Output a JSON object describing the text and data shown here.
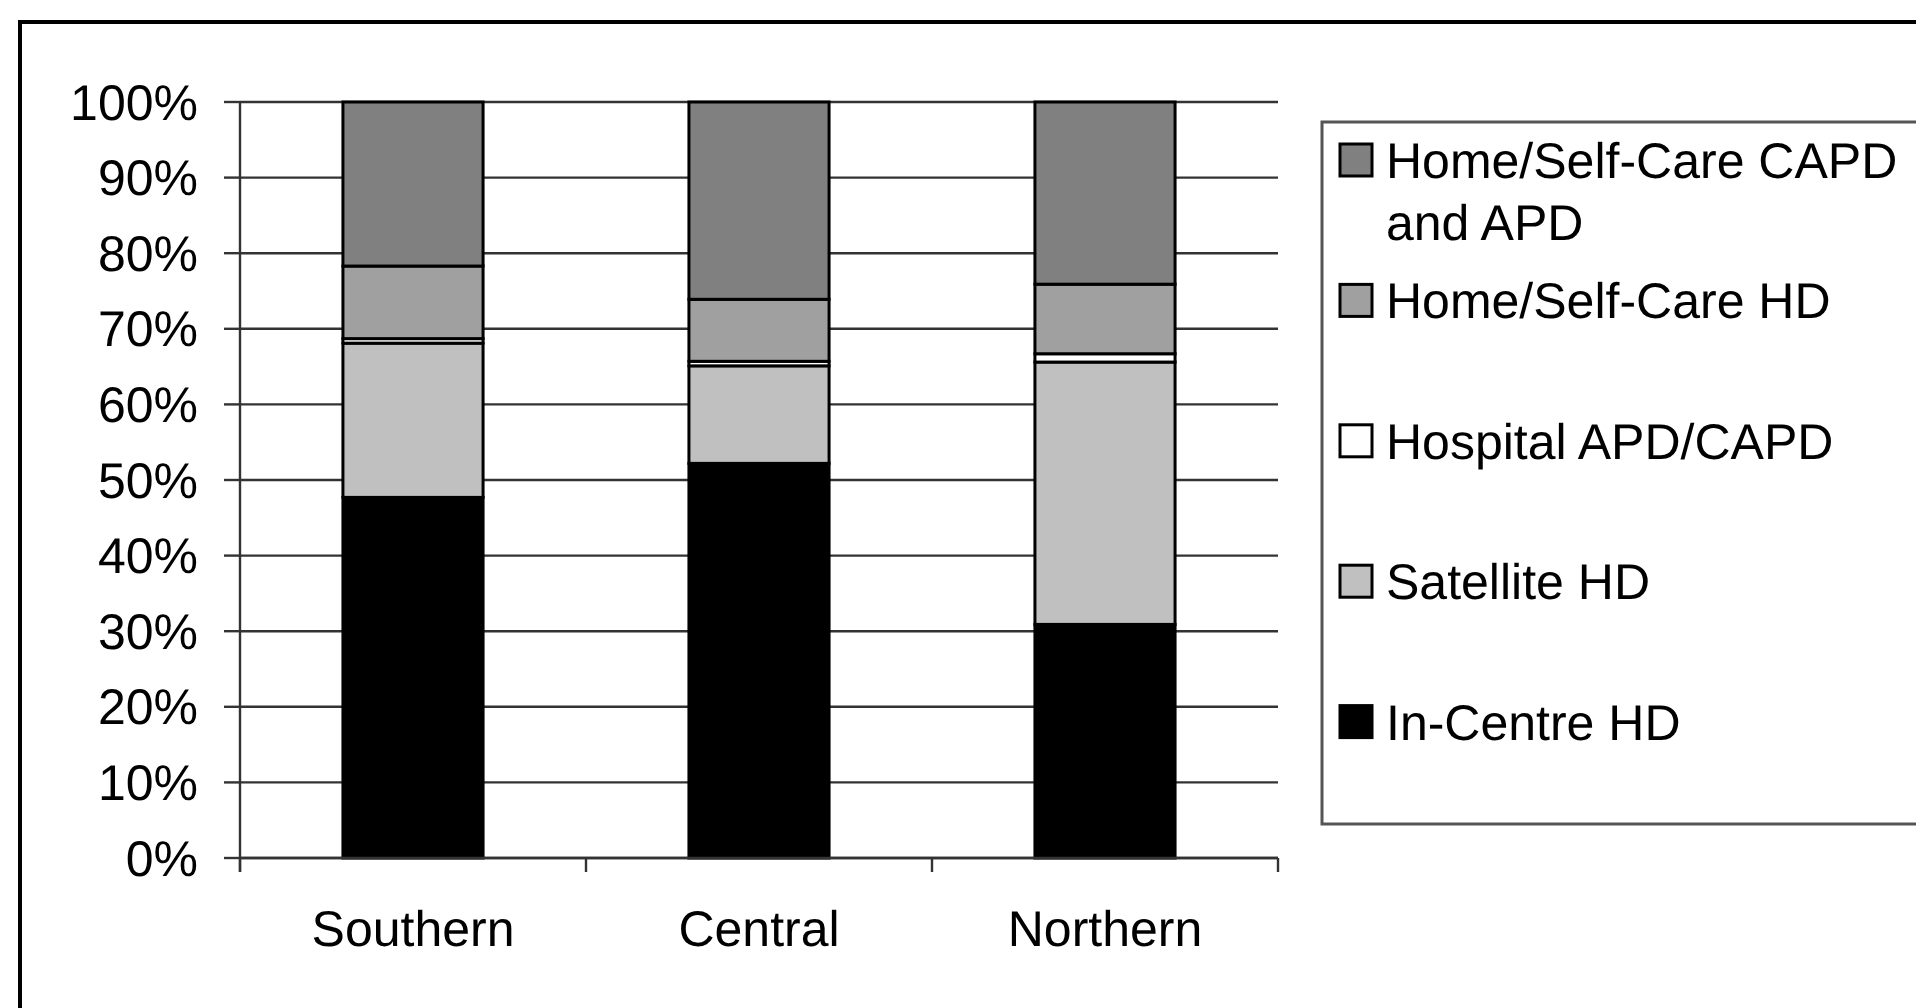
{
  "chart_data": {
    "type": "bar",
    "stacked": true,
    "categories": [
      "Southern",
      "Central",
      "Northern"
    ],
    "series": [
      {
        "name": "In-Centre HD",
        "color": "#000000",
        "values": [
          47.7,
          52.2,
          30.9
        ]
      },
      {
        "name": "Satellite HD",
        "color": "#c0c0c0",
        "values": [
          20.4,
          12.9,
          34.7
        ]
      },
      {
        "name": "Hospital APD/CAPD",
        "color": "#ffffff",
        "values": [
          0.6,
          0.6,
          1.1
        ]
      },
      {
        "name": "Home/Self-Care HD",
        "color": "#a0a0a0",
        "values": [
          9.6,
          8.2,
          9.2
        ]
      },
      {
        "name": "Home/Self-Care CAPD and APD",
        "color": "#808080",
        "values": [
          21.7,
          26.1,
          24.1
        ]
      }
    ],
    "ylim": [
      0,
      100
    ],
    "yticks": [
      {
        "value": 0,
        "label": "0%"
      },
      {
        "value": 10,
        "label": "10%"
      },
      {
        "value": 20,
        "label": "20%"
      },
      {
        "value": 30,
        "label": "30%"
      },
      {
        "value": 40,
        "label": "40%"
      },
      {
        "value": 50,
        "label": "50%"
      },
      {
        "value": 60,
        "label": "60%"
      },
      {
        "value": 70,
        "label": "70%"
      },
      {
        "value": 80,
        "label": "80%"
      },
      {
        "value": 90,
        "label": "90%"
      },
      {
        "value": 100,
        "label": "100%"
      }
    ],
    "grid": "y",
    "legend": "right"
  }
}
